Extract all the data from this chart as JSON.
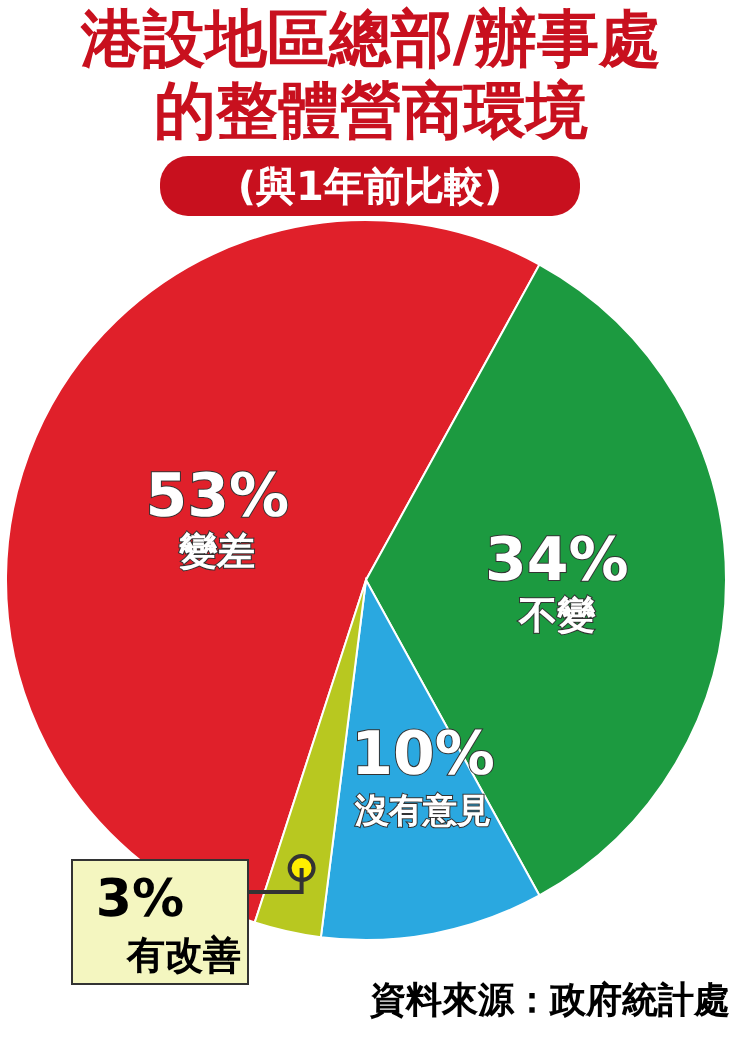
{
  "chart_data": {
    "type": "pie",
    "title": "港設地區總部/辦事處的整體營商環境",
    "subtitle": "(與1年前比較)",
    "categories": [
      "變差",
      "不變",
      "沒有意見",
      "有改善"
    ],
    "values": [
      53,
      34,
      10,
      3
    ],
    "colors": [
      "#e0202a",
      "#1c9a40",
      "#2aa8e0",
      "#b8c820"
    ],
    "value_labels": [
      "53%",
      "34%",
      "10%",
      "3%"
    ],
    "legend": false,
    "annotations": [
      "資料來源：政府統計處"
    ]
  }
}
